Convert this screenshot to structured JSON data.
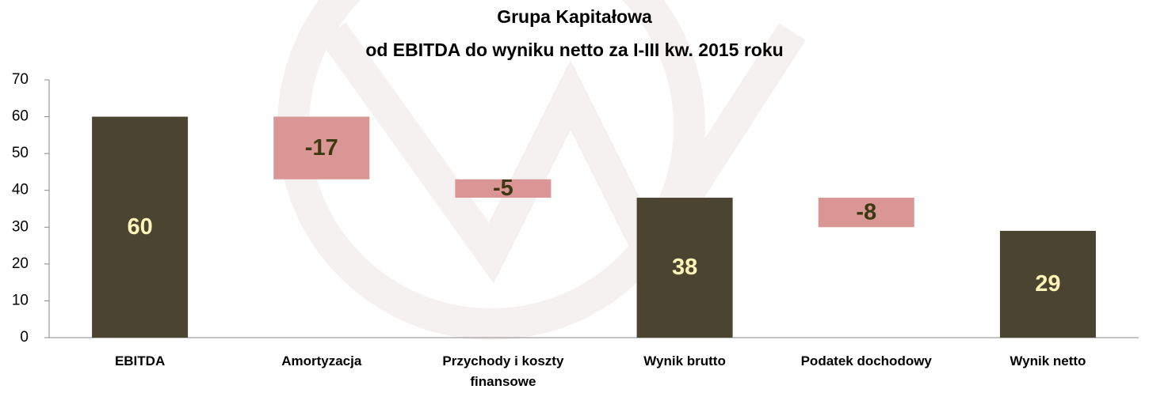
{
  "chart_data": {
    "type": "waterfall",
    "title": [
      "Grupa Kapitałowa",
      "od EBITDA do wyniku netto za I-III kw. 2015 roku"
    ],
    "categories": [
      "EBITDA",
      "Amortyzacja",
      "Przychody i koszty finansowe",
      "Wynik brutto",
      "Podatek dochodowy",
      "Wynik netto"
    ],
    "values": [
      60,
      -17,
      -5,
      38,
      -8,
      29
    ],
    "measure": [
      "absolute",
      "relative",
      "relative",
      "absolute",
      "relative",
      "absolute"
    ],
    "colors": {
      "absolute": "#4b4430",
      "relative": "#d99694"
    },
    "label_colors": {
      "absolute": "#fff5b8",
      "relative": "#3d3810"
    },
    "ylim": [
      0,
      70
    ],
    "yticks": [
      0,
      10,
      20,
      30,
      40,
      50,
      60,
      70
    ],
    "grid": false
  }
}
